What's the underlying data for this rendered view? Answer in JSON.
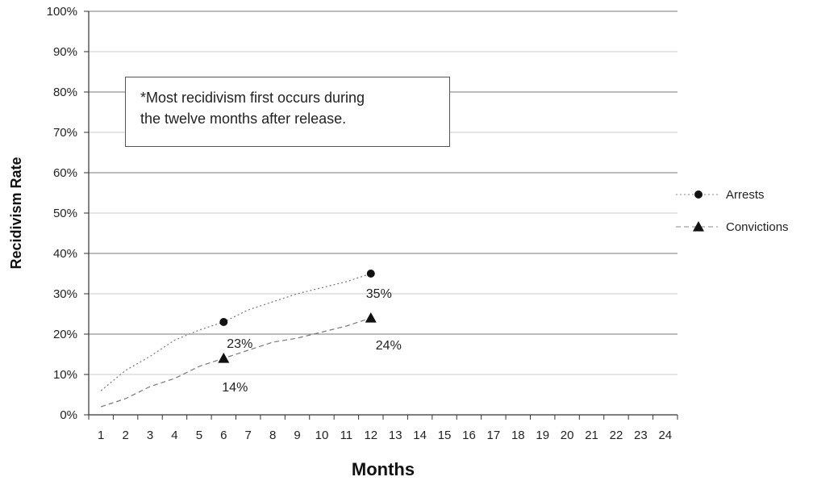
{
  "chart_data": {
    "type": "line",
    "title": "",
    "xlabel": "Months",
    "ylabel": "Recidivism Rate",
    "categories": [
      "1",
      "2",
      "3",
      "4",
      "5",
      "6",
      "7",
      "8",
      "9",
      "10",
      "11",
      "12",
      "13",
      "14",
      "15",
      "16",
      "17",
      "18",
      "19",
      "20",
      "21",
      "22",
      "23",
      "24"
    ],
    "y_ticks": [
      "0%",
      "10%",
      "20%",
      "30%",
      "40%",
      "50%",
      "60%",
      "70%",
      "80%",
      "90%",
      "100%"
    ],
    "ylim": [
      0,
      100
    ],
    "grid": true,
    "legend_position": "right",
    "series": [
      {
        "name": "Arrests",
        "marker": "circle",
        "line_style": "dotted",
        "color": "#888888",
        "x": [
          1,
          2,
          3,
          4,
          5,
          6,
          7,
          8,
          9,
          10,
          11,
          12
        ],
        "values": [
          6,
          11,
          14.5,
          18.5,
          21,
          23,
          26,
          28,
          30,
          31.5,
          33,
          35
        ],
        "labeled_points": [
          {
            "x": 6,
            "y": 23,
            "label": "23%"
          },
          {
            "x": 12,
            "y": 35,
            "label": "35%"
          }
        ]
      },
      {
        "name": "Convictions",
        "marker": "triangle",
        "line_style": "dashed",
        "color": "#888888",
        "x": [
          1,
          2,
          3,
          4,
          5,
          6,
          7,
          8,
          9,
          10,
          11,
          12
        ],
        "values": [
          2,
          4,
          7,
          9,
          12,
          14,
          16,
          18,
          19,
          20.5,
          22,
          24
        ],
        "labeled_points": [
          {
            "x": 6,
            "y": 14,
            "label": "14%"
          },
          {
            "x": 12,
            "y": 24,
            "label": "24%"
          }
        ]
      }
    ],
    "annotation": {
      "lines": [
        "*Most recidivism first occurs during",
        "the twelve months after release."
      ]
    }
  }
}
